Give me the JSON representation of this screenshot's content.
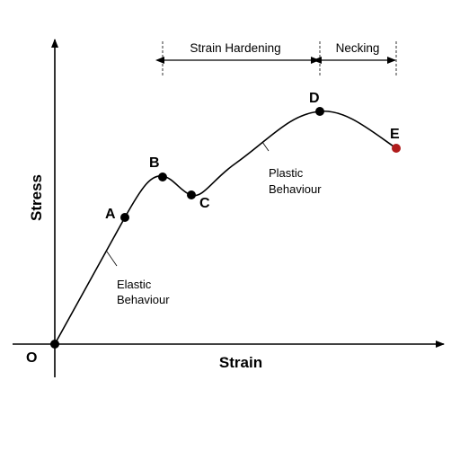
{
  "diagram": {
    "axes": {
      "x_label": "Strain",
      "y_label": "Stress",
      "origin_label": "O"
    },
    "points": [
      {
        "id": "A",
        "label": "A",
        "color": "#000000"
      },
      {
        "id": "B",
        "label": "B",
        "color": "#000000"
      },
      {
        "id": "C",
        "label": "C",
        "color": "#000000"
      },
      {
        "id": "D",
        "label": "D",
        "color": "#000000"
      },
      {
        "id": "E",
        "label": "E",
        "color": "#b01c1c"
      }
    ],
    "regions": {
      "strain_hardening": "Strain Hardening",
      "necking": "Necking"
    },
    "annotations": {
      "elastic": {
        "line1": "Elastic",
        "line2": "Behaviour"
      },
      "plastic": {
        "line1": "Plastic",
        "line2": "Behaviour"
      }
    }
  }
}
